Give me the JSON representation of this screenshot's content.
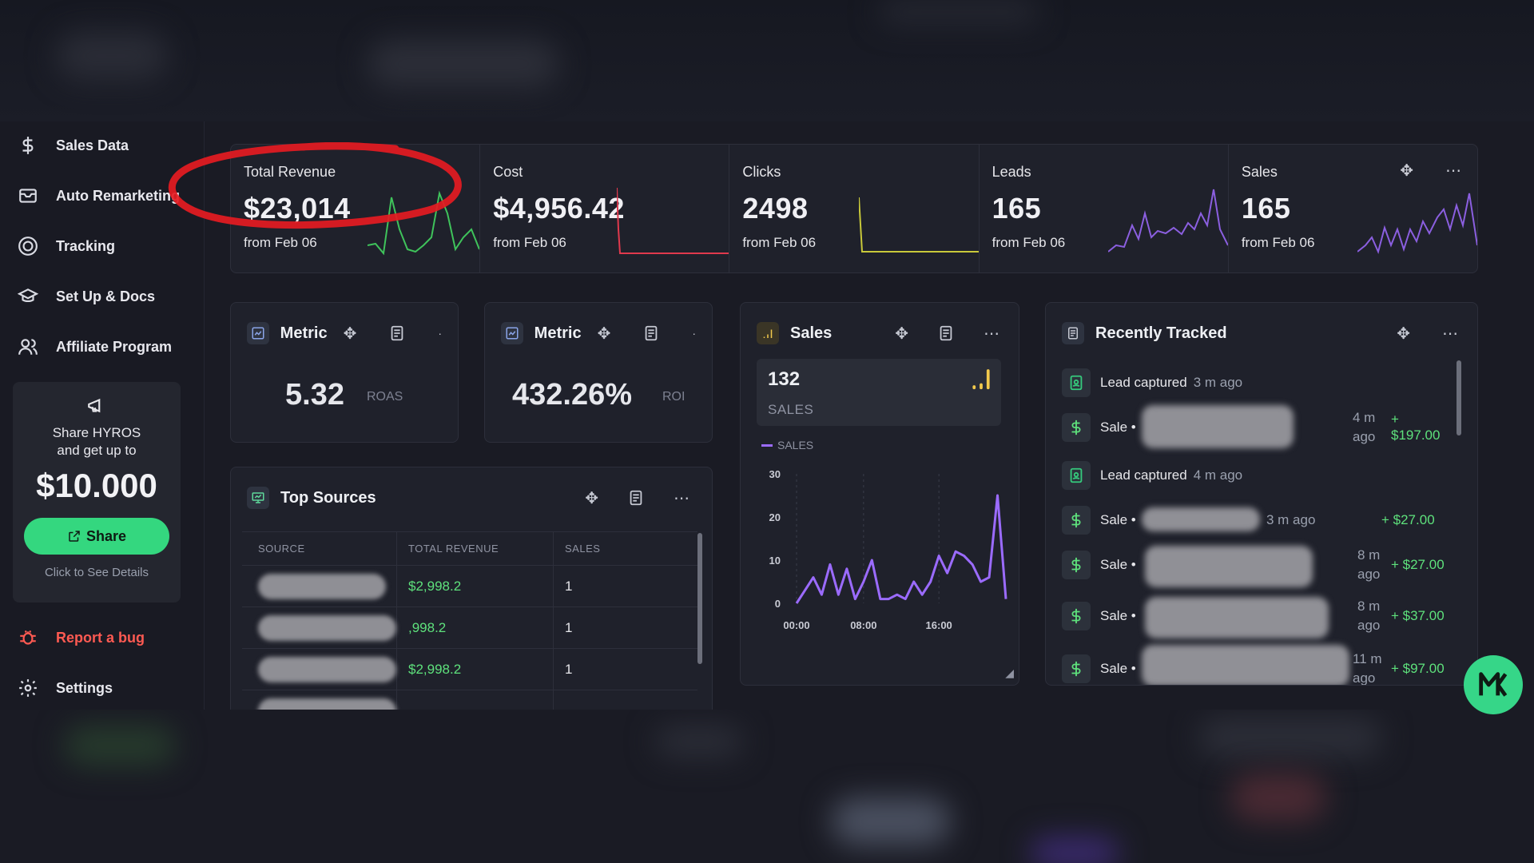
{
  "sidebar": {
    "items": [
      {
        "label": "Sales Data",
        "icon": "dollar-icon"
      },
      {
        "label": "Auto Remarketing",
        "icon": "mail-icon"
      },
      {
        "label": "Tracking",
        "icon": "target-icon"
      },
      {
        "label": "Set Up & Docs",
        "icon": "graduation-cap-icon"
      },
      {
        "label": "Affiliate Program",
        "icon": "users-icon"
      }
    ],
    "bottom": [
      {
        "label": "Report a bug",
        "icon": "bug-icon"
      },
      {
        "label": "Settings",
        "icon": "gear-icon"
      }
    ],
    "promo": {
      "line1": "Share HYROS",
      "line2": "and get up to",
      "amount": "$10.000",
      "button": "Share",
      "details": "Click to See Details"
    }
  },
  "kpis": [
    {
      "label": "Total Revenue",
      "value": "$23,014",
      "sub": "from Feb 06",
      "spark_color": "#3fc35b"
    },
    {
      "label": "Cost",
      "value": "$4,956.42",
      "sub": "from Feb 06",
      "spark_color": "#e0394d"
    },
    {
      "label": "Clicks",
      "value": "2498",
      "sub": "from Feb 06",
      "spark_color": "#c9c93a"
    },
    {
      "label": "Leads",
      "value": "165",
      "sub": "from Feb 06",
      "spark_color": "#8b5fe0"
    },
    {
      "label": "Sales",
      "value": "165",
      "sub": "from Feb 06",
      "spark_color": "#8b5fe0"
    }
  ],
  "metric_cards": [
    {
      "title": "Metric",
      "value": "5.32",
      "unit": "ROAS"
    },
    {
      "title": "Metric",
      "value": "432.26%",
      "unit": "ROI"
    }
  ],
  "top_sources": {
    "title": "Top Sources",
    "columns": [
      "SOURCE",
      "TOTAL REVENUE",
      "SALES"
    ],
    "rows": [
      {
        "revenue": "$2,998.2",
        "sales": "1"
      },
      {
        "revenue": ",998.2",
        "sales": "1"
      },
      {
        "revenue": "$2,998.2",
        "sales": "1"
      }
    ]
  },
  "sales_widget": {
    "title": "Sales",
    "count": "132",
    "count_label": "SALES",
    "legend": "SALES",
    "accent": "#f2c94c"
  },
  "chart_data": {
    "type": "line",
    "series": [
      {
        "name": "SALES",
        "values": [
          0,
          3,
          6,
          2,
          9,
          2,
          8,
          1,
          5,
          10,
          1,
          1,
          2,
          1,
          5,
          2,
          5,
          11,
          7,
          12,
          11,
          9,
          5,
          6,
          25,
          1
        ]
      }
    ],
    "x_ticks": [
      "00:00",
      "08:00",
      "16:00"
    ],
    "y_ticks": [
      0,
      10,
      20,
      30
    ],
    "ylim": [
      0,
      30
    ],
    "color": "#9b6bff"
  },
  "recently_tracked": {
    "title": "Recently Tracked",
    "items": [
      {
        "type": "Lead captured",
        "time": "3 m ago",
        "money": ""
      },
      {
        "type": "Sale •",
        "time": "4 m ago",
        "money": "+ $197.00"
      },
      {
        "type": "Lead captured",
        "time": "4 m ago",
        "money": ""
      },
      {
        "type": "Sale •",
        "time": "3 m ago",
        "money": "+ $27.00"
      },
      {
        "type": "Sale •",
        "time": "8 m ago",
        "money": "+ $27.00"
      },
      {
        "type": "Sale •",
        "time": "8 m ago",
        "money": "+ $37.00"
      },
      {
        "type": "Sale •",
        "time": "11 m ago",
        "money": "+ $97.00"
      }
    ]
  },
  "colors": {
    "accent_green": "#34d77f",
    "money_green": "#5ee17c",
    "danger": "#ff5a52",
    "purple": "#9b6bff"
  }
}
